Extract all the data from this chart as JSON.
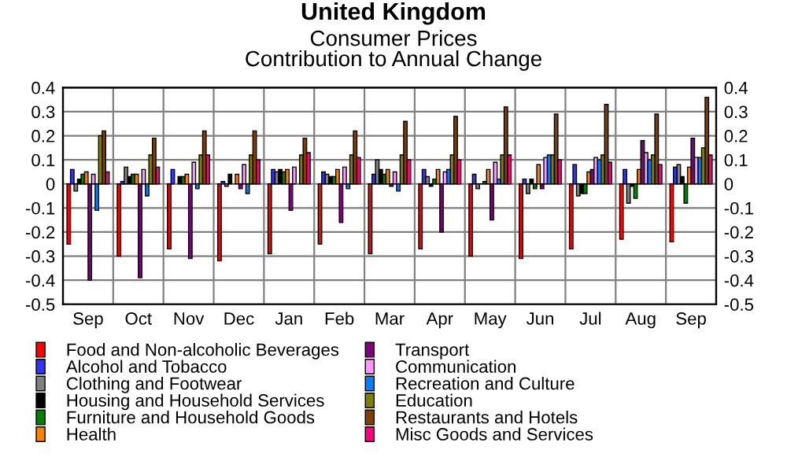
{
  "chart_data": {
    "type": "bar",
    "title": "United Kingdom",
    "subtitle": "Consumer Prices\nContribution to Annual Change",
    "categories": [
      "Sep",
      "Oct",
      "Nov",
      "Dec",
      "Jan",
      "Feb",
      "Mar",
      "Apr",
      "May",
      "Jun",
      "Jul",
      "Aug",
      "Sep"
    ],
    "series": [
      {
        "name": "Food and Non-alcoholic Beverages",
        "color": "#ff0000",
        "values": [
          -0.25,
          -0.3,
          -0.27,
          -0.32,
          -0.29,
          -0.25,
          -0.29,
          -0.27,
          -0.3,
          -0.31,
          -0.27,
          -0.23,
          -0.24
        ]
      },
      {
        "name": "Alcohol and Tobacco",
        "color": "#3333ff",
        "values": [
          0.06,
          0.01,
          0.06,
          0.01,
          0.06,
          0.05,
          0.04,
          0.06,
          0.04,
          0.02,
          0.08,
          0.06,
          0.07
        ]
      },
      {
        "name": "Clothing and Footwear",
        "color": "#808080",
        "values": [
          -0.03,
          0.07,
          0.0,
          -0.01,
          0.05,
          0.04,
          0.1,
          0.03,
          -0.02,
          -0.04,
          -0.05,
          -0.08,
          0.08
        ]
      },
      {
        "name": "Housing and Household Services",
        "color": "#000000",
        "values": [
          0.02,
          0.03,
          0.03,
          0.04,
          0.06,
          0.03,
          0.06,
          -0.01,
          0.0,
          0.02,
          -0.04,
          -0.01,
          0.03
        ]
      },
      {
        "name": "Furniture and Household Goods",
        "color": "#008000",
        "values": [
          0.04,
          0.04,
          0.03,
          0.0,
          0.05,
          0.03,
          0.04,
          0.02,
          0.01,
          -0.02,
          -0.04,
          -0.06,
          -0.08
        ]
      },
      {
        "name": "Health",
        "color": "#ff8000",
        "values": [
          0.05,
          0.04,
          0.04,
          0.04,
          0.06,
          0.06,
          0.06,
          0.06,
          0.06,
          0.08,
          0.05,
          0.06,
          0.07
        ]
      },
      {
        "name": "Transport",
        "color": "#800080",
        "values": [
          -0.4,
          -0.39,
          -0.31,
          -0.02,
          -0.11,
          -0.16,
          -0.01,
          -0.2,
          -0.15,
          -0.02,
          0.06,
          0.18,
          0.19
        ]
      },
      {
        "name": "Communication",
        "color": "#ff99ff",
        "values": [
          0.04,
          0.06,
          0.09,
          0.08,
          0.07,
          0.07,
          0.05,
          0.05,
          0.09,
          0.11,
          0.11,
          0.13,
          0.11
        ]
      },
      {
        "name": "Recreation and Culture",
        "color": "#0080ff",
        "values": [
          -0.11,
          -0.05,
          -0.02,
          -0.04,
          0.0,
          -0.02,
          -0.03,
          0.06,
          0.02,
          0.12,
          0.1,
          0.1,
          0.11
        ]
      },
      {
        "name": "Education",
        "color": "#808000",
        "values": [
          0.2,
          0.12,
          0.12,
          0.12,
          0.12,
          0.12,
          0.12,
          0.12,
          0.12,
          0.12,
          0.12,
          0.12,
          0.15
        ]
      },
      {
        "name": "Restaurants and Hotels",
        "color": "#804000",
        "values": [
          0.22,
          0.19,
          0.22,
          0.22,
          0.19,
          0.22,
          0.26,
          0.28,
          0.32,
          0.29,
          0.33,
          0.29,
          0.36
        ]
      },
      {
        "name": "Misc Goods and Services",
        "color": "#ff0080",
        "values": [
          0.05,
          0.07,
          0.12,
          0.1,
          0.13,
          0.11,
          0.1,
          0.1,
          0.12,
          0.1,
          0.09,
          0.08,
          0.12
        ]
      }
    ],
    "ylim": [
      -0.5,
      0.4
    ],
    "yticks": [
      -0.5,
      -0.4,
      -0.3,
      -0.2,
      -0.1,
      0,
      0.1,
      0.2,
      0.3,
      0.4
    ],
    "y2lim": [
      -0.5,
      0.4
    ],
    "y2ticks": [
      -0.5,
      -0.4,
      -0.3,
      -0.2,
      -0.1,
      0,
      0.1,
      0.2,
      0.3,
      0.4
    ],
    "grid": true,
    "legend": "bottom"
  }
}
